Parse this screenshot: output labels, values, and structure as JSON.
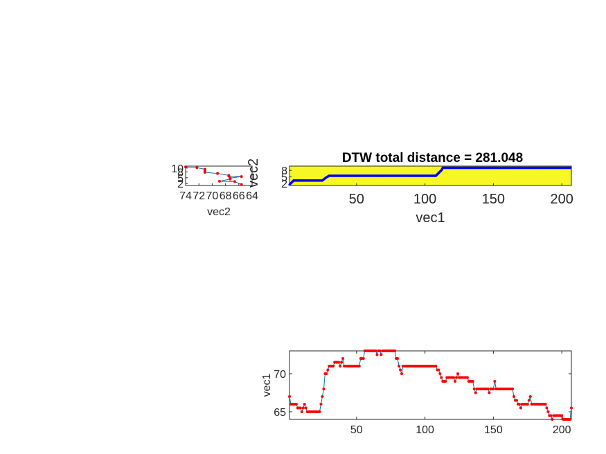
{
  "chart_data": [
    {
      "id": "vec2-plot",
      "type": "line",
      "xlabel": "vec2",
      "ylabel": "",
      "x_reversed": true,
      "xlim": [
        64,
        74
      ],
      "ylim": [
        1,
        11
      ],
      "xticks": [
        74,
        72,
        70,
        68,
        66,
        64
      ],
      "yticks": [
        2,
        5,
        8,
        10
      ],
      "ytick_labels": [
        "2",
        "5",
        "8",
        "10"
      ],
      "line_color": "#0072BD",
      "marker_color": "#FF0000",
      "points": [
        [
          74,
          10.6
        ],
        [
          72.3,
          10.2
        ],
        [
          71.1,
          9.4
        ],
        [
          71.1,
          8.7
        ],
        [
          71.1,
          7.8
        ],
        [
          69.2,
          7.2
        ],
        [
          67.5,
          6.2
        ],
        [
          67.5,
          5.8
        ],
        [
          65.6,
          5.6
        ],
        [
          67.3,
          4.8
        ],
        [
          67.3,
          4.3
        ],
        [
          68.9,
          3.2
        ],
        [
          66.6,
          3.0
        ],
        [
          65.6,
          1.5
        ]
      ]
    },
    {
      "id": "dtw-path",
      "type": "scatter",
      "title": "DTW total distance = 281.048",
      "xlabel": "vec1",
      "ylabel": "vec2",
      "xlim": [
        1,
        207
      ],
      "ylim": [
        1,
        10
      ],
      "xticks": [
        50,
        100,
        150,
        200
      ],
      "yticks": [
        2,
        5,
        8
      ],
      "background": "#FFFF33",
      "path_color": "#0000FF",
      "path": [
        [
          1,
          1.4
        ],
        [
          4,
          3.3
        ],
        [
          25,
          3.3
        ],
        [
          28,
          4.8
        ],
        [
          30,
          5.5
        ],
        [
          108,
          5.5
        ],
        [
          110,
          6.8
        ],
        [
          112,
          8.0
        ],
        [
          113,
          9.2
        ],
        [
          207,
          9.2
        ]
      ]
    },
    {
      "id": "vec1-plot",
      "type": "line",
      "xlabel": "",
      "ylabel": "vec1",
      "xlim": [
        1,
        207
      ],
      "ylim": [
        64,
        73
      ],
      "xticks": [
        50,
        100,
        150,
        200
      ],
      "yticks": [
        65,
        70
      ],
      "line_color": "#0072BD",
      "marker_color": "#FF0000",
      "segments": [
        [
          1,
          67
        ],
        [
          2,
          66
        ],
        [
          6,
          66
        ],
        [
          7,
          65.5
        ],
        [
          9,
          65.5
        ],
        [
          10,
          65
        ],
        [
          11,
          65.5
        ],
        [
          12,
          66
        ],
        [
          13,
          65.5
        ],
        [
          14,
          65
        ],
        [
          23,
          65
        ],
        [
          24,
          66
        ],
        [
          25,
          67
        ],
        [
          26,
          68
        ],
        [
          27,
          70
        ],
        [
          29,
          70.5
        ],
        [
          30,
          71
        ],
        [
          33,
          71
        ],
        [
          34,
          71.5
        ],
        [
          37,
          71.5
        ],
        [
          38,
          71
        ],
        [
          39,
          71.5
        ],
        [
          40,
          72
        ],
        [
          41,
          71
        ],
        [
          52,
          71
        ],
        [
          53,
          72
        ],
        [
          55,
          72
        ],
        [
          56,
          73
        ],
        [
          64,
          73
        ],
        [
          65,
          72.5
        ],
        [
          66,
          73
        ],
        [
          67,
          73
        ],
        [
          68,
          72.5
        ],
        [
          69,
          73
        ],
        [
          78,
          73
        ],
        [
          79,
          72
        ],
        [
          81,
          71
        ],
        [
          82,
          70.5
        ],
        [
          83,
          70
        ],
        [
          84,
          71
        ],
        [
          108,
          71
        ],
        [
          109,
          70.5
        ],
        [
          111,
          70
        ],
        [
          112,
          69.5
        ],
        [
          113,
          69
        ],
        [
          115,
          69
        ],
        [
          116,
          69.5
        ],
        [
          121,
          69.5
        ],
        [
          122,
          69
        ],
        [
          123,
          69.5
        ],
        [
          124,
          70
        ],
        [
          125,
          69.5
        ],
        [
          131,
          69.5
        ],
        [
          132,
          69
        ],
        [
          135,
          69
        ],
        [
          136,
          68
        ],
        [
          137,
          67.5
        ],
        [
          138,
          68
        ],
        [
          146,
          68
        ],
        [
          147,
          67.5
        ],
        [
          148,
          68
        ],
        [
          150,
          68
        ],
        [
          151,
          69
        ],
        [
          152,
          68
        ],
        [
          164,
          68
        ],
        [
          165,
          67
        ],
        [
          166,
          66.5
        ],
        [
          168,
          66
        ],
        [
          170,
          65.5
        ],
        [
          171,
          66
        ],
        [
          175,
          66
        ],
        [
          176,
          66.5
        ],
        [
          177,
          67
        ],
        [
          178,
          66
        ],
        [
          188,
          66
        ],
        [
          189,
          65.5
        ],
        [
          190,
          65
        ],
        [
          191,
          64.5
        ],
        [
          193,
          64
        ],
        [
          194,
          64.5
        ],
        [
          200,
          64.5
        ],
        [
          201,
          64
        ],
        [
          206,
          64
        ],
        [
          207,
          65.5
        ]
      ]
    }
  ]
}
